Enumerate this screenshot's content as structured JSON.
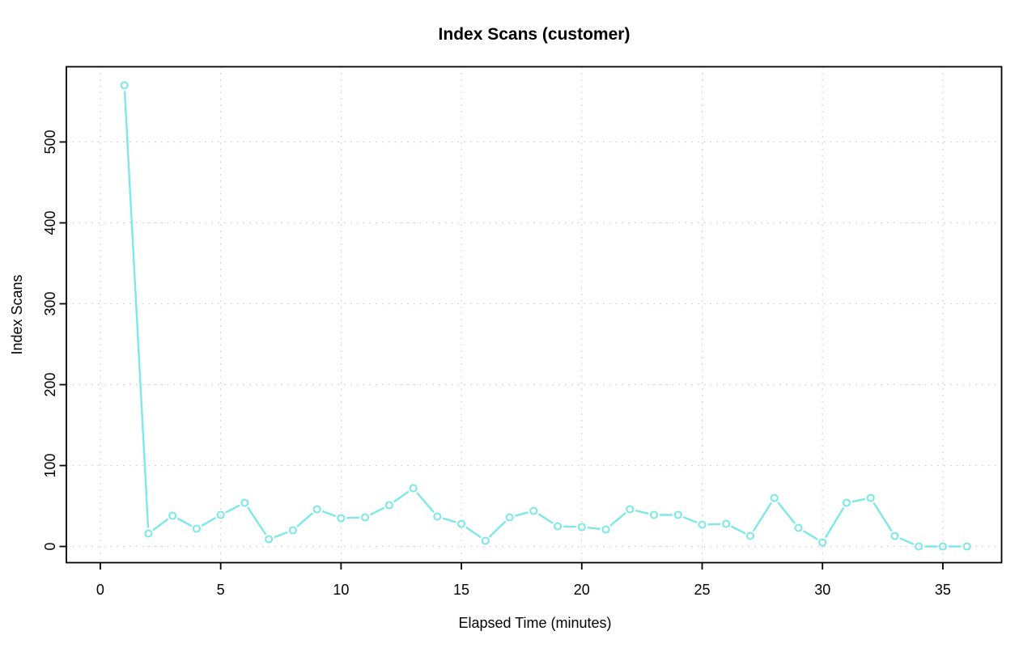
{
  "chart_data": {
    "type": "line",
    "title": "Index Scans (customer)",
    "xlabel": "Elapsed Time (minutes)",
    "ylabel": "Index Scans",
    "x": [
      1,
      2,
      3,
      4,
      5,
      6,
      7,
      8,
      9,
      10,
      11,
      12,
      13,
      14,
      15,
      16,
      17,
      18,
      19,
      20,
      21,
      22,
      23,
      24,
      25,
      26,
      27,
      28,
      29,
      30,
      31,
      32,
      33,
      34,
      35,
      36
    ],
    "values": [
      570,
      16,
      38,
      22,
      39,
      54,
      9,
      20,
      46,
      35,
      36,
      51,
      72,
      37,
      28,
      7,
      36,
      44,
      25,
      24,
      21,
      46,
      39,
      39,
      27,
      28,
      13,
      60,
      23,
      5,
      54,
      60,
      13,
      0,
      0,
      0
    ],
    "x_ticks": [
      0,
      5,
      10,
      15,
      20,
      25,
      30,
      35
    ],
    "y_ticks": [
      0,
      100,
      200,
      300,
      400,
      500
    ],
    "xlim": [
      -1.41,
      37.44
    ],
    "ylim": [
      -20,
      593
    ],
    "grid": "dotted",
    "legend": "none",
    "marker": "open-circle",
    "line_style": "both-points-and-segments",
    "colors": {
      "series": "#7DE8E8",
      "grid": "#CCCCCC",
      "axis": "#000000",
      "background": "#FFFFFF"
    }
  }
}
